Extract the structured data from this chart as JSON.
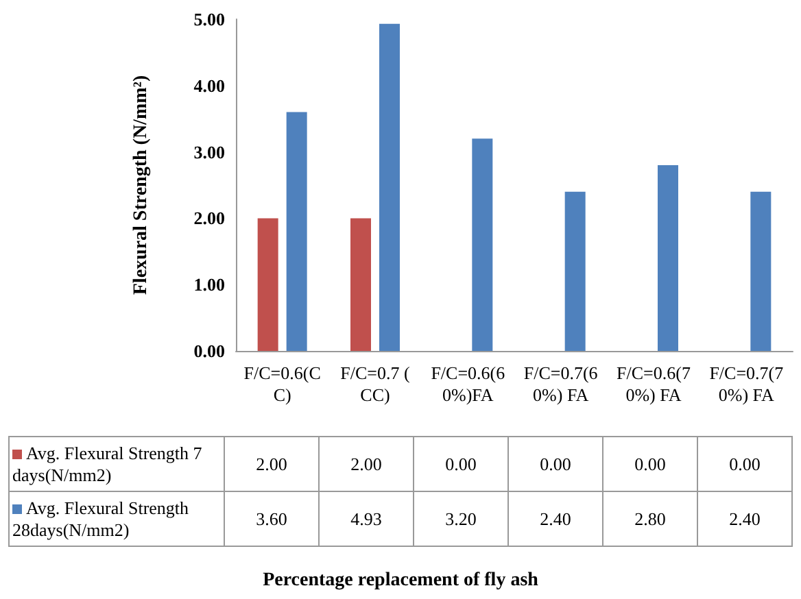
{
  "chart_data": {
    "type": "bar",
    "ylabel": "Flexural Strength (N/mm²)",
    "annotations": [
      "Percentage replacement of fly ash"
    ],
    "categories": [
      "F/C=0.6(CC)",
      "F/C=0.7 (CC)",
      "F/C=0.6(60%)FA",
      "F/C=0.7(60%) FA",
      "F/C=0.6(70%) FA",
      "F/C=0.7(70%) FA"
    ],
    "series": [
      {
        "name": "Avg. Flexural Strength 7 days(N/mm2)",
        "color": "#c0504d",
        "values": [
          2.0,
          2.0,
          0.0,
          0.0,
          0.0,
          0.0
        ],
        "value_labels": [
          "2.00",
          "2.00",
          "0.00",
          "0.00",
          "0.00",
          "0.00"
        ]
      },
      {
        "name": "Avg. Flexural Strength 28days(N/mm2)",
        "color": "#4f81bd",
        "values": [
          3.6,
          4.93,
          3.2,
          2.4,
          2.8,
          2.4
        ],
        "value_labels": [
          "3.60",
          "4.93",
          "3.20",
          "2.40",
          "2.80",
          "2.40"
        ]
      }
    ],
    "ylim": [
      0,
      5
    ],
    "yticks": [
      {
        "value": 0,
        "label": "0.00"
      },
      {
        "value": 1,
        "label": "1.00"
      },
      {
        "value": 2,
        "label": "2.00"
      },
      {
        "value": 3,
        "label": "3.00"
      },
      {
        "value": 4,
        "label": "4.00"
      },
      {
        "value": 5,
        "label": "5.00"
      }
    ],
    "grid": false,
    "legend": "bottom"
  }
}
